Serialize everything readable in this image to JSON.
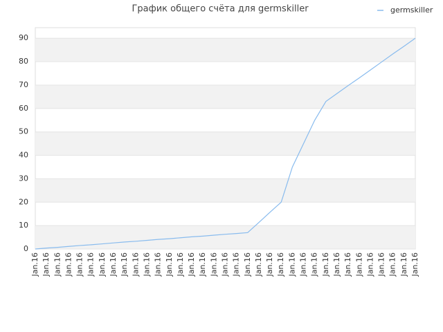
{
  "chart_data": {
    "type": "line",
    "title": "График общего счёта для germskiller",
    "categories": [
      "Jan.16",
      "Jan.16",
      "Jan.16",
      "Jan.16",
      "Jan.16",
      "Jan.16",
      "Jan.16",
      "Jan.16",
      "Jan.16",
      "Jan.16",
      "Jan.16",
      "Jan.16",
      "Jan.16",
      "Jan.16",
      "Jan.16",
      "Jan.16",
      "Jan.16",
      "Jan.16",
      "Jan.16",
      "Jan.16",
      "Jan.16",
      "Jan.16",
      "Jan.16",
      "Jan.16",
      "Jan.16",
      "Jan.16",
      "Jan.16",
      "Jan.16",
      "Jan.16",
      "Jan.16",
      "Jan.16",
      "Jan.16",
      "Jan.16",
      "Jan.16",
      "Jan.16"
    ],
    "series": [
      {
        "name": "germskiller",
        "color": "#88bbee",
        "values": [
          0,
          0.4,
          0.7,
          1.1,
          1.5,
          1.8,
          2.2,
          2.6,
          3,
          3.3,
          3.7,
          4.1,
          4.4,
          4.8,
          5.2,
          5.5,
          5.9,
          6.3,
          6.6,
          7,
          11.3,
          15.7,
          20,
          35,
          45,
          55,
          63,
          66.4,
          69.8,
          73.1,
          76.5,
          79.9,
          83.3,
          86.6,
          90
        ]
      }
    ],
    "ylim": [
      0,
      94.5
    ],
    "yticks": [
      0,
      10,
      20,
      30,
      40,
      50,
      60,
      70,
      80,
      90
    ],
    "grid": true,
    "legend": "top-right"
  }
}
